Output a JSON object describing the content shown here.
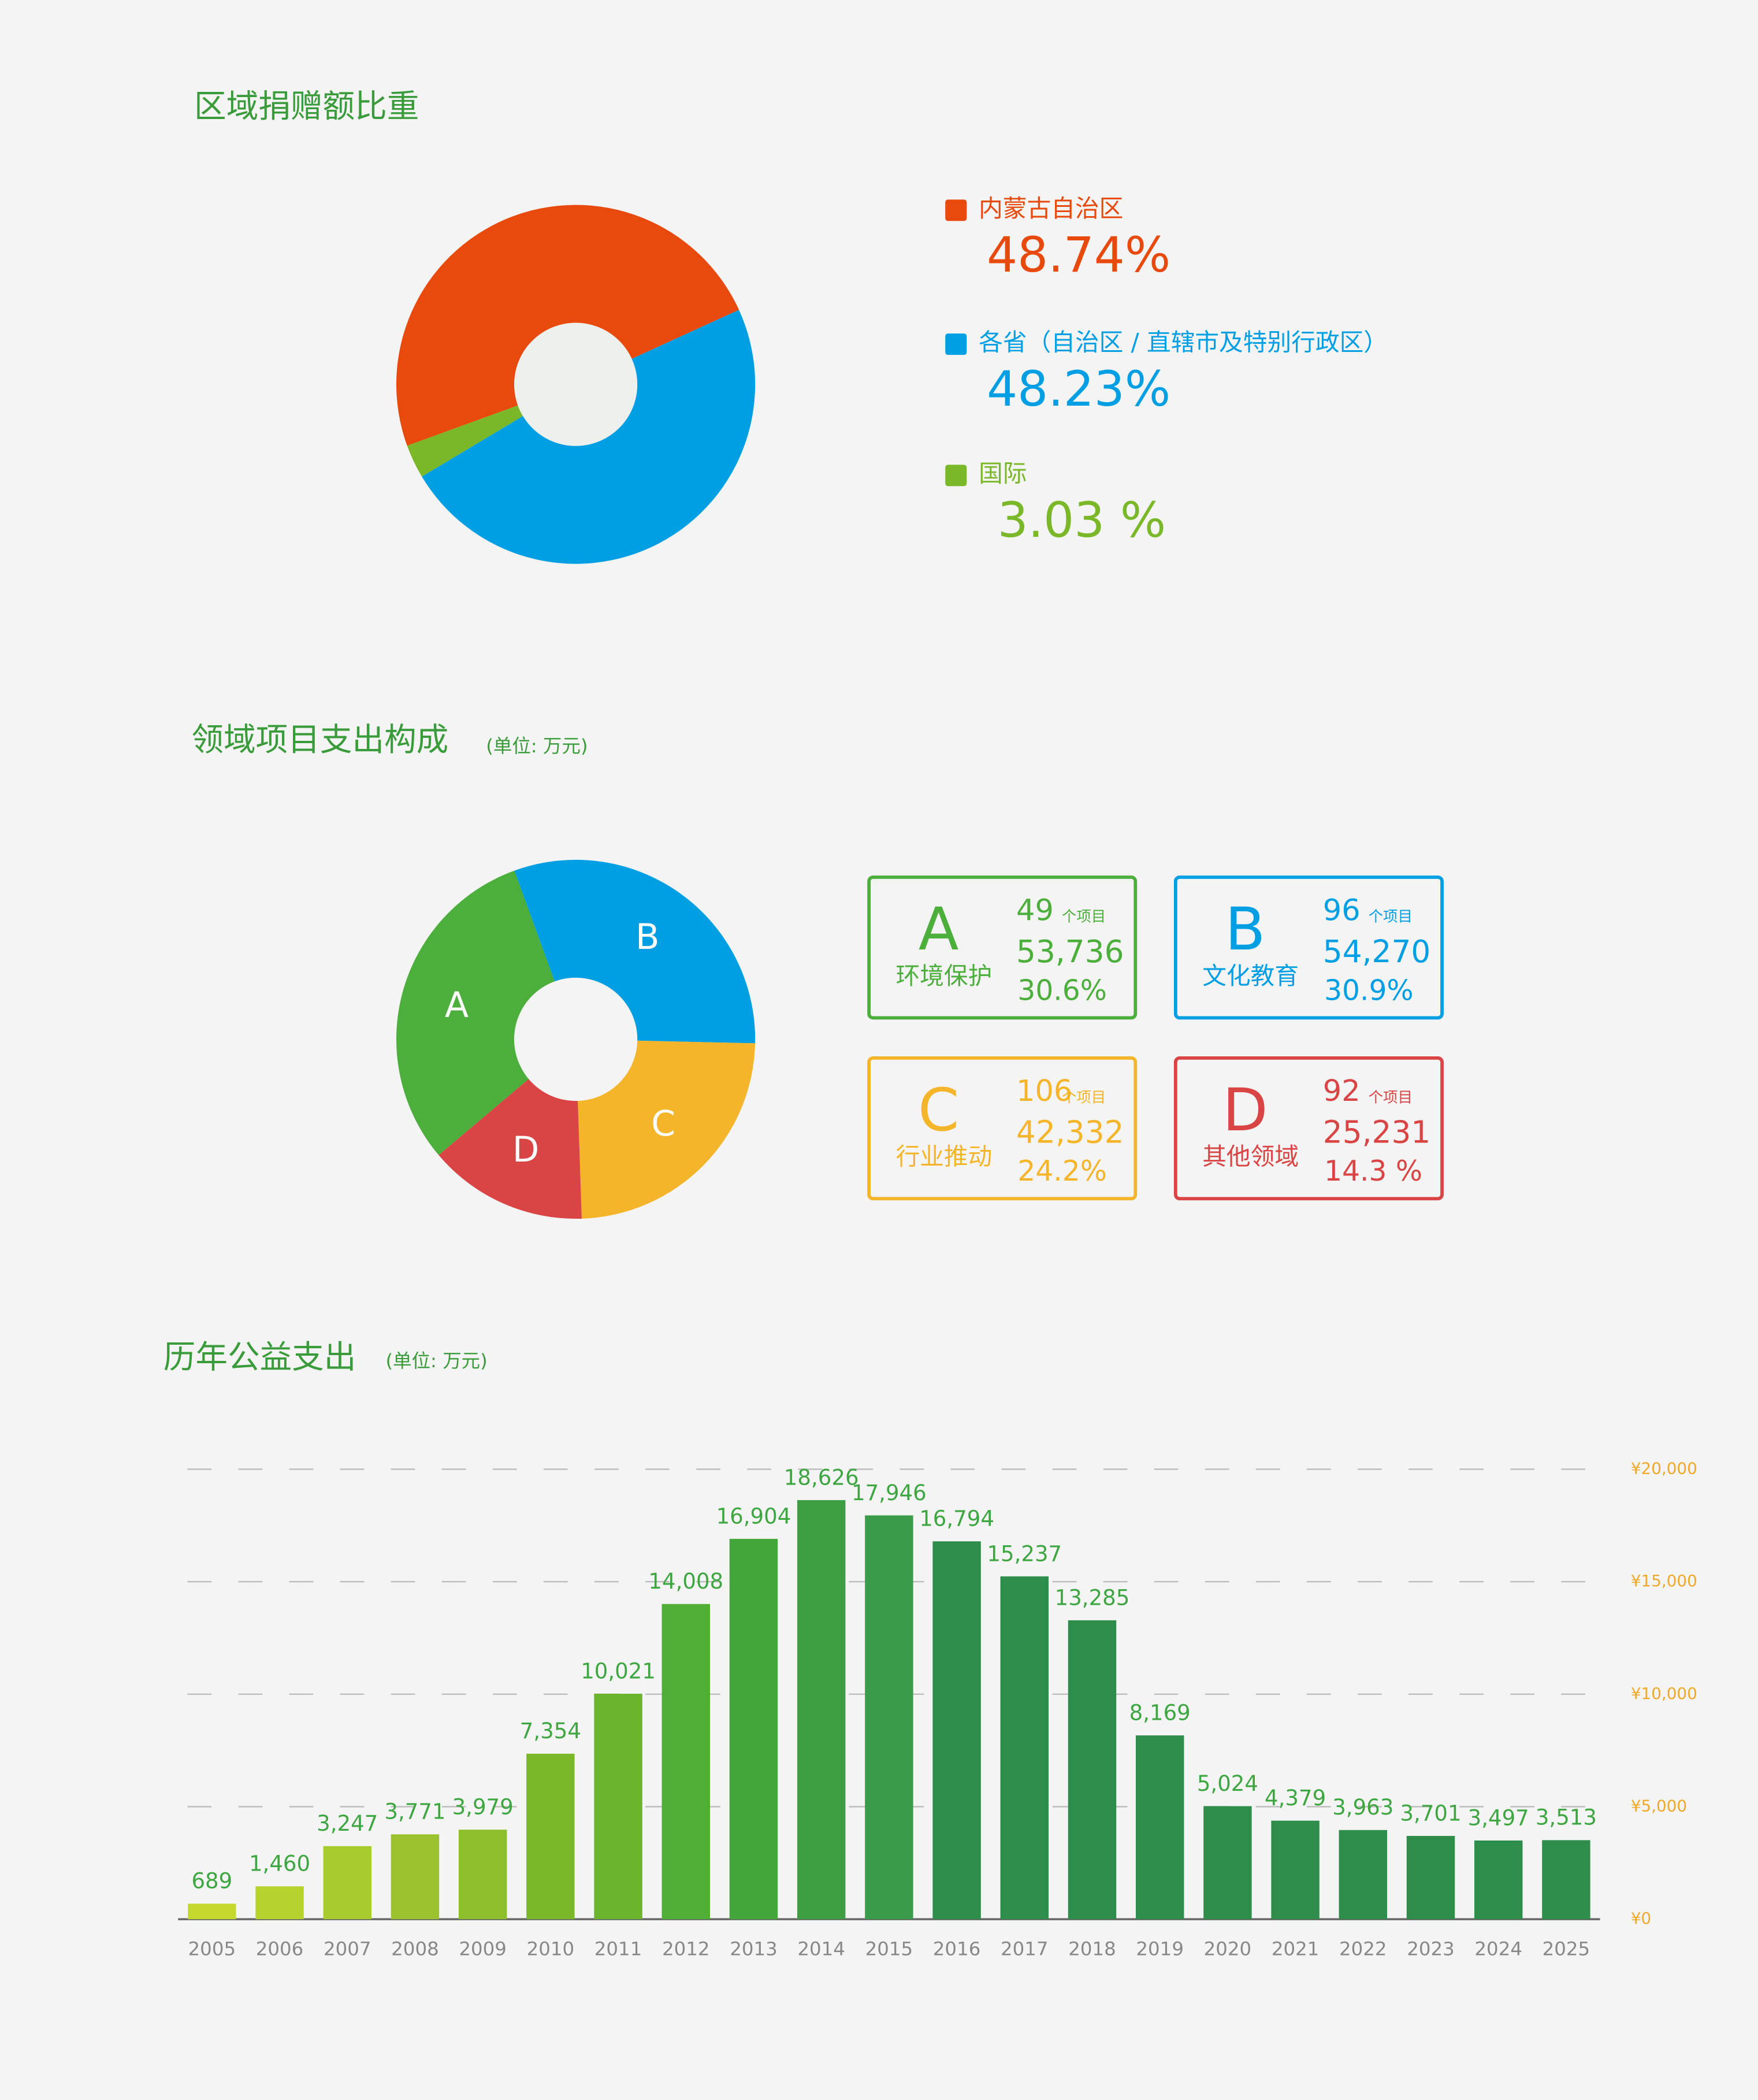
{
  "chart_data": [
    {
      "type": "donut",
      "title": "区域捐赠额比重",
      "categories": [
        "内蒙古自治区",
        "各省（自治区 / 直辖市及特别行政区）",
        "国际"
      ],
      "values": [
        48.74,
        48.23,
        3.03
      ],
      "value_labels": [
        "48.74%",
        "48.23%",
        "3.03 %"
      ],
      "colors": [
        "#e8490c",
        "#009fe3",
        "#7ab829"
      ]
    },
    {
      "type": "donut",
      "title": "领域项目支出构成",
      "subtitle": "(单位: 万元)",
      "categories": [
        "A",
        "B",
        "C",
        "D"
      ],
      "names": [
        "环境保护",
        "文化教育",
        "行业推动",
        "其他领域"
      ],
      "project_counts": [
        49,
        96,
        106,
        92
      ],
      "count_unit": "个项目",
      "values": [
        53736,
        54270,
        42332,
        25231
      ],
      "value_labels": [
        "53,736",
        "54,270",
        "42,332",
        "25,231"
      ],
      "percents": [
        30.6,
        30.9,
        24.2,
        14.3
      ],
      "percent_labels": [
        "30.6%",
        "30.9%",
        "24.2%",
        "14.3 %"
      ],
      "colors": [
        "#4caf3c",
        "#009fe3",
        "#f5b52a",
        "#d94545"
      ]
    },
    {
      "type": "bar",
      "title": "历年公益支出",
      "subtitle": "(单位: 万元)",
      "categories": [
        "2005",
        "2006",
        "2007",
        "2008",
        "2009",
        "2010",
        "2011",
        "2012",
        "2013",
        "2014",
        "2015",
        "2016",
        "2017",
        "2018",
        "2019",
        "2020",
        "2021",
        "2022",
        "2023",
        "2024",
        "2025"
      ],
      "values": [
        689,
        1460,
        3247,
        3771,
        3979,
        7354,
        10021,
        14008,
        16904,
        18626,
        17946,
        16794,
        15237,
        13285,
        8169,
        5024,
        4379,
        3963,
        3701,
        3497,
        3513
      ],
      "value_labels": [
        "689",
        "1,460",
        "3,247",
        "3,771",
        "3,979",
        "7,354",
        "10,021",
        "14,008",
        "16,904",
        "18,626",
        "17,946",
        "16,794",
        "15,237",
        "13,285",
        "8,169",
        "5,024",
        "4,379",
        "3,963",
        "3,701",
        "3,497",
        "3,513"
      ],
      "colors": [
        "#c5d92d",
        "#b5d22f",
        "#a8cb2e",
        "#9bc32f",
        "#8dbe2b",
        "#7ab829",
        "#6ab42e",
        "#4fae35",
        "#43a638",
        "#3d9f41",
        "#3a9b4a",
        "#2f8d4b",
        "#2f8d4b",
        "#2f8d4b",
        "#2f8d4b",
        "#2f8d4b",
        "#2f8d4b",
        "#2f8d4b",
        "#2f8d4b",
        "#2f8d4b",
        "#2f8d4b"
      ],
      "ylim": [
        0,
        20000
      ],
      "yticks": [
        {
          "value": 0,
          "label": "¥0"
        },
        {
          "value": 5000,
          "label": "¥5,000"
        },
        {
          "value": 10000,
          "label": "¥10,000"
        },
        {
          "value": 15000,
          "label": "¥15,000"
        },
        {
          "value": 20000,
          "label": "¥20,000"
        }
      ],
      "grid": true
    }
  ]
}
